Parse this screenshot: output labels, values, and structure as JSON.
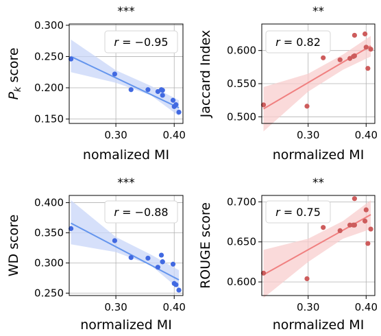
{
  "chart_data": [
    {
      "type": "scatter",
      "significance": "***",
      "xlabel": "nomalized MI",
      "ylabel": "P_k score",
      "ylabel_parts": {
        "main": "P",
        "sub": "k",
        "rest": " score"
      },
      "annotation": "r = −0.95",
      "annotation_parts": {
        "var": "r",
        "rest": " = −0.95"
      },
      "color": "#4169e1",
      "line_color": "#6495ed",
      "band_color": "#c8d6f8",
      "xlim": [
        0.22,
        0.415
      ],
      "ylim": [
        0.143,
        0.302
      ],
      "xticks": [
        0.3,
        0.4
      ],
      "xtick_labels": [
        "0.30",
        "0.40"
      ],
      "yticks": [
        0.15,
        0.2,
        0.25,
        0.3
      ],
      "ytick_labels": [
        "0.150",
        "0.200",
        "0.250",
        "0.300"
      ],
      "x": [
        0.223,
        0.298,
        0.326,
        0.355,
        0.372,
        0.378,
        0.38,
        0.38,
        0.398,
        0.4,
        0.403,
        0.408
      ],
      "y": [
        0.246,
        0.222,
        0.197,
        0.197,
        0.194,
        0.197,
        0.196,
        0.188,
        0.18,
        0.17,
        0.173,
        0.161
      ],
      "fit": {
        "x": [
          0.223,
          0.408
        ],
        "y": [
          0.25,
          0.168
        ]
      },
      "band": {
        "x": [
          0.223,
          0.3,
          0.36,
          0.408
        ],
        "lower": [
          0.225,
          0.208,
          0.188,
          0.155
        ],
        "upper": [
          0.277,
          0.228,
          0.203,
          0.18
        ]
      }
    },
    {
      "type": "scatter",
      "significance": "**",
      "xlabel": "normalized MI",
      "ylabel": "Jaccard Index",
      "annotation": "r = 0.82",
      "annotation_parts": {
        "var": "r",
        "rest": " = 0.82"
      },
      "color": "#cd5c5c",
      "line_color": "#f08080",
      "band_color": "#f8cdcd",
      "xlim": [
        0.22,
        0.415
      ],
      "ylim": [
        0.49,
        0.64
      ],
      "xticks": [
        0.3,
        0.4
      ],
      "xtick_labels": [
        "0.30",
        "0.40"
      ],
      "yticks": [
        0.5,
        0.55,
        0.6
      ],
      "ytick_labels": [
        "0.500",
        "0.550",
        "0.600"
      ],
      "x": [
        0.223,
        0.298,
        0.326,
        0.355,
        0.372,
        0.378,
        0.38,
        0.38,
        0.398,
        0.4,
        0.403,
        0.408
      ],
      "y": [
        0.518,
        0.516,
        0.589,
        0.586,
        0.588,
        0.591,
        0.592,
        0.623,
        0.625,
        0.605,
        0.573,
        0.602
      ],
      "fit": {
        "x": [
          0.223,
          0.408
        ],
        "y": [
          0.512,
          0.607
        ]
      },
      "band": {
        "x": [
          0.223,
          0.3,
          0.36,
          0.408
        ],
        "lower": [
          0.478,
          0.538,
          0.571,
          0.591
        ],
        "upper": [
          0.545,
          0.565,
          0.594,
          0.622
        ]
      }
    },
    {
      "type": "scatter",
      "significance": "***",
      "xlabel": "normalized MI",
      "ylabel": "WD score",
      "annotation": "r = −0.88",
      "annotation_parts": {
        "var": "r",
        "rest": " = −0.88"
      },
      "color": "#4169e1",
      "line_color": "#6495ed",
      "band_color": "#c8d6f8",
      "xlim": [
        0.22,
        0.415
      ],
      "ylim": [
        0.246,
        0.412
      ],
      "xticks": [
        0.3,
        0.4
      ],
      "xtick_labels": [
        "0.30",
        "0.40"
      ],
      "yticks": [
        0.25,
        0.3,
        0.35,
        0.4
      ],
      "ytick_labels": [
        "0.250",
        "0.300",
        "0.350",
        "0.400"
      ],
      "x": [
        0.223,
        0.298,
        0.326,
        0.355,
        0.372,
        0.378,
        0.38,
        0.38,
        0.398,
        0.4,
        0.403,
        0.408
      ],
      "y": [
        0.357,
        0.337,
        0.309,
        0.308,
        0.293,
        0.313,
        0.302,
        0.302,
        0.298,
        0.266,
        0.264,
        0.255
      ],
      "fit": {
        "x": [
          0.223,
          0.408
        ],
        "y": [
          0.366,
          0.272
        ]
      },
      "band": {
        "x": [
          0.223,
          0.3,
          0.36,
          0.408
        ],
        "lower": [
          0.331,
          0.318,
          0.296,
          0.257
        ],
        "upper": [
          0.404,
          0.343,
          0.314,
          0.288
        ]
      }
    },
    {
      "type": "scatter",
      "significance": "**",
      "xlabel": "normalized MI",
      "ylabel": "ROUGE score",
      "annotation": "r = 0.75",
      "annotation_parts": {
        "var": "r",
        "rest": " = 0.75"
      },
      "color": "#cd5c5c",
      "line_color": "#f08080",
      "band_color": "#f8cdcd",
      "xlim": [
        0.22,
        0.415
      ],
      "ylim": [
        0.583,
        0.708
      ],
      "xticks": [
        0.3,
        0.4
      ],
      "xtick_labels": [
        "0.30",
        "0.40"
      ],
      "yticks": [
        0.6,
        0.65,
        0.7
      ],
      "ytick_labels": [
        "0.600",
        "0.650",
        "0.700"
      ],
      "x": [
        0.223,
        0.298,
        0.326,
        0.355,
        0.372,
        0.378,
        0.38,
        0.38,
        0.398,
        0.4,
        0.403,
        0.408
      ],
      "y": [
        0.611,
        0.604,
        0.668,
        0.664,
        0.671,
        0.671,
        0.704,
        0.671,
        0.676,
        0.69,
        0.648,
        0.666
      ],
      "fit": {
        "x": [
          0.223,
          0.408
        ],
        "y": [
          0.609,
          0.684
        ]
      },
      "band": {
        "x": [
          0.223,
          0.3,
          0.36,
          0.408
        ],
        "lower": [
          0.58,
          0.625,
          0.654,
          0.666
        ],
        "upper": [
          0.64,
          0.654,
          0.676,
          0.702
        ]
      }
    }
  ]
}
